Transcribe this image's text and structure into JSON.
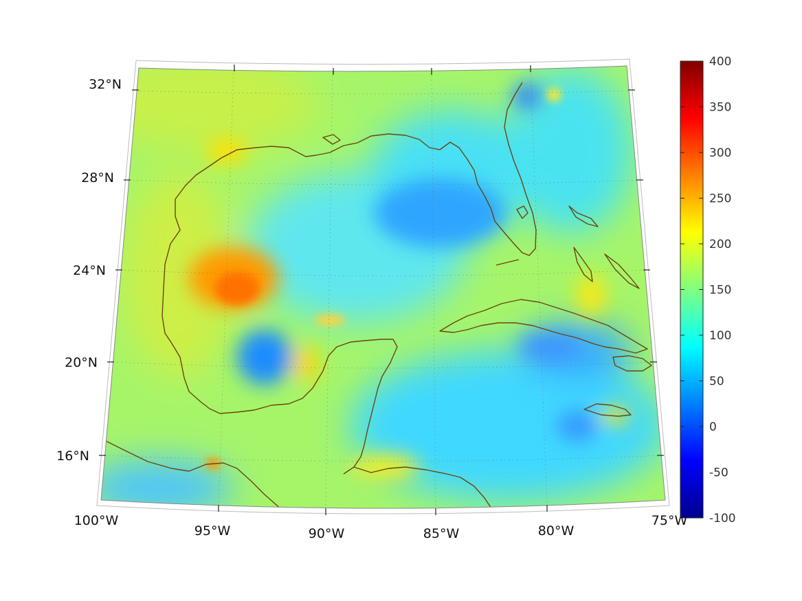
{
  "map": {
    "region": "Gulf of Mexico and Caribbean",
    "projection": "conic",
    "lon_range": [
      -100,
      -75
    ],
    "lat_range": [
      14,
      32
    ],
    "longitude_labels": [
      "100°W",
      "95°W",
      "90°W",
      "85°W",
      "80°W",
      "75°W"
    ],
    "latitude_labels": [
      "16°N",
      "20°N",
      "24°N",
      "28°N",
      "32°N"
    ],
    "coastline_color": "#6b4410",
    "grid": true
  },
  "colorbar": {
    "colormap": "jet",
    "min": -100,
    "max": 400,
    "tick_labels": [
      "400",
      "350",
      "300",
      "250",
      "200",
      "150",
      "100",
      "50",
      "0",
      "-50",
      "-100"
    ],
    "stops": [
      "#00008f",
      "#0000ff",
      "#0080ff",
      "#00ffff",
      "#80ff80",
      "#ffff00",
      "#ff8000",
      "#ff0000",
      "#800000"
    ]
  },
  "field": {
    "background": "#a6f569",
    "features": [
      {
        "name": "high-west-gulf",
        "color": "#ff9900",
        "value": 270
      },
      {
        "name": "high-west-gulf-core",
        "color": "#ff7a00",
        "value": 290
      },
      {
        "name": "low-florida-shelf",
        "color": "#29aaff",
        "value": 45
      },
      {
        "name": "low-bay-of-campeche",
        "color": "#1f90ff",
        "value": 35
      },
      {
        "name": "low-south-cuba",
        "color": "#3aa6ff",
        "value": 45
      },
      {
        "name": "low-carolina",
        "color": "#2b8cff",
        "value": 30
      },
      {
        "name": "mid-central-gulf",
        "color": "#33e8ff",
        "value": 100
      },
      {
        "name": "mid-caribbean",
        "color": "#30ddff",
        "value": 90
      },
      {
        "name": "mid-pacific-strip",
        "color": "#40ccff",
        "value": 70
      },
      {
        "name": "high-yucatan-east",
        "color": "#ffd400",
        "value": 215
      }
    ]
  }
}
